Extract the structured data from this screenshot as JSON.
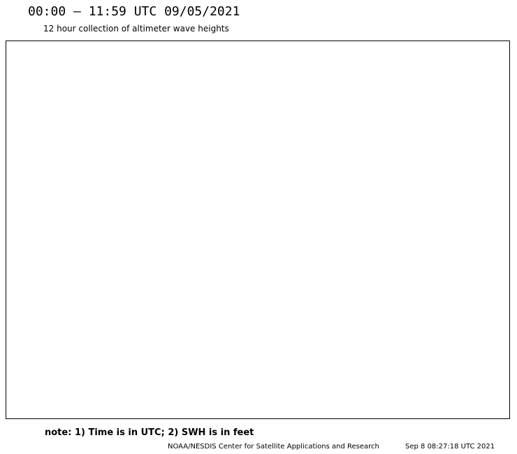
{
  "title": "00:00 – 11:59 UTC 09/05/2021",
  "subtitle": "12 hour collection of altimeter wave heights",
  "note": "note: 1) Time is in UTC; 2) SWH is in feet",
  "footer": {
    "credit": "NOAA/NESDIS Center for Satellite Applications and Research",
    "timestamp": "Sep  8 08:27:18 UTC 2021"
  },
  "colors": {
    "background": "#ffffff",
    "grid": "#000000"
  }
}
